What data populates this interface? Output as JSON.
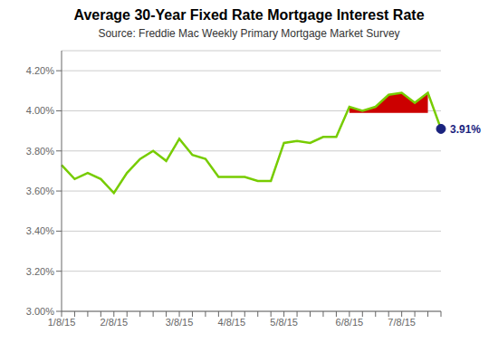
{
  "chart_data": {
    "type": "line",
    "title": "Average 30-Year Fixed Rate Mortgage Interest Rate",
    "subtitle": "Source: Freddie Mac Weekly Primary Mortgage Market Survey",
    "categories": [
      "1/8/15",
      null,
      null,
      null,
      "2/8/15",
      null,
      null,
      null,
      null,
      "3/8/15",
      null,
      null,
      null,
      "4/8/15",
      null,
      null,
      null,
      "5/8/15",
      null,
      null,
      null,
      null,
      "6/8/15",
      null,
      null,
      null,
      "7/8/15",
      null,
      null,
      null
    ],
    "series": [
      {
        "type": "area",
        "color": "#cc0000",
        "baseline": 3.99,
        "values": [
          null,
          null,
          null,
          null,
          null,
          null,
          null,
          null,
          null,
          null,
          null,
          null,
          null,
          null,
          null,
          null,
          null,
          null,
          null,
          null,
          null,
          null,
          4.02,
          4.0,
          4.02,
          4.08,
          4.09,
          4.04,
          4.09,
          null
        ]
      },
      {
        "type": "line",
        "color": "#77cc00",
        "values": [
          3.73,
          3.66,
          3.69,
          3.66,
          3.59,
          3.69,
          3.76,
          3.8,
          3.75,
          3.86,
          3.78,
          3.76,
          3.67,
          3.67,
          3.67,
          3.65,
          3.65,
          3.84,
          3.85,
          3.84,
          3.87,
          3.87,
          4.02,
          4.0,
          4.02,
          4.08,
          4.09,
          4.04,
          4.09,
          3.91
        ]
      }
    ],
    "annotations": [
      {
        "text": "3.91%",
        "color": "#1a237e"
      }
    ],
    "ylim": [
      3.0,
      4.3
    ],
    "yticks": [
      {
        "value": 3.0,
        "label": "3.00%"
      },
      {
        "value": 3.2,
        "label": "3.20%"
      },
      {
        "value": 3.4,
        "label": "3.40%"
      },
      {
        "value": 3.6,
        "label": "3.60%"
      },
      {
        "value": 3.8,
        "label": "3.80%"
      },
      {
        "value": 4.0,
        "label": "4.00%"
      },
      {
        "value": 4.2,
        "label": "4.20%"
      }
    ],
    "grid": true
  }
}
